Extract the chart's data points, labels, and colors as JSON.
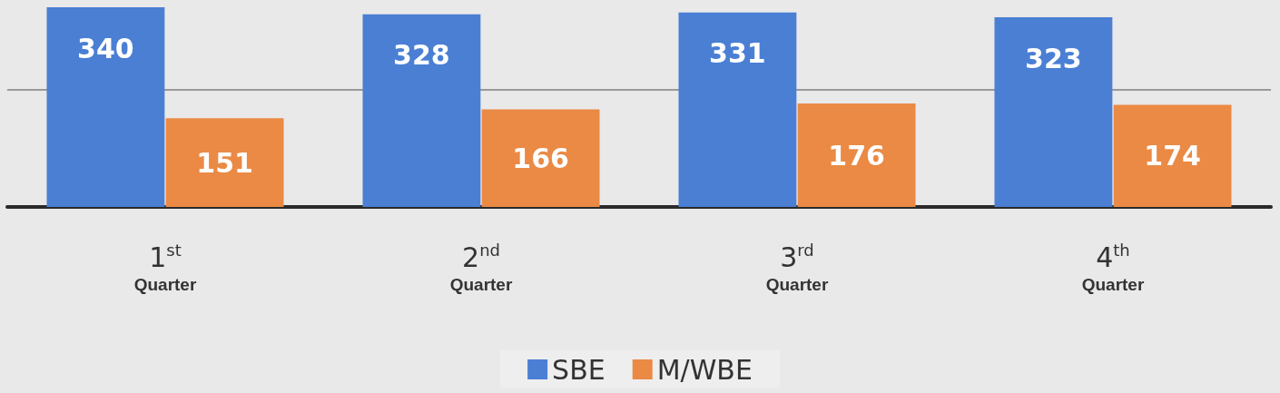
{
  "chart_data": {
    "type": "bar",
    "categories": [
      "1$^{st}$\nQuarter",
      "2$^{nd}$\nQuarter",
      "3$^{rd}$\nQuarter",
      "4$^{th}$\nQuarter"
    ],
    "series": [
      {
        "name": "SBE",
        "color": "#4a7fd4",
        "values": [
          340,
          328,
          331,
          323
        ]
      },
      {
        "name": "M/WBE",
        "color": "#ea8a45",
        "values": [
          151,
          166,
          176,
          174
        ]
      }
    ],
    "ylim": [
      0,
      340
    ],
    "ref_lines": [
      {
        "axis": "y",
        "value": 200,
        "color": "#9a9a9a"
      }
    ],
    "tick_labels": "x",
    "data_labels": true,
    "legend": "bottom"
  }
}
